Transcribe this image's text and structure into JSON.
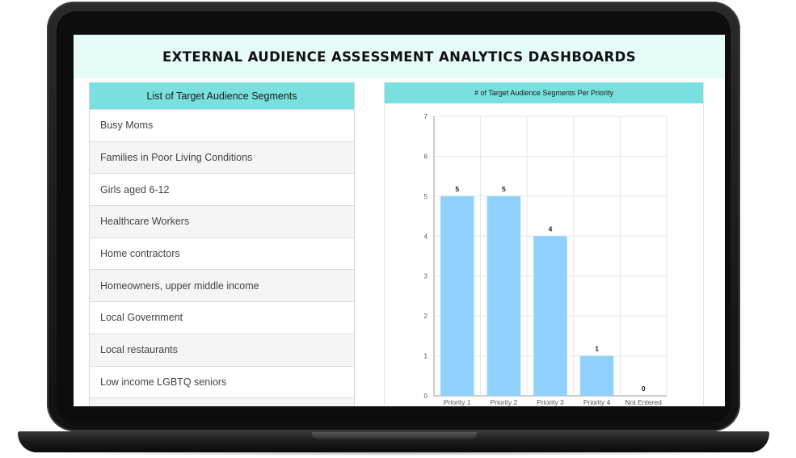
{
  "header": {
    "title": "EXTERNAL AUDIENCE ASSESSMENT ANALYTICS DASHBOARDS"
  },
  "segments": {
    "title": "List of Target Audience Segments",
    "items": [
      "Busy Moms",
      "Families in Poor Living Conditions",
      "Girls aged 6-12",
      "Healthcare Workers",
      "Home contractors",
      "Homeowners, upper middle income",
      "Local Government",
      "Local restaurants",
      "Low income LGBTQ seniors",
      ""
    ]
  },
  "chart_data": {
    "type": "bar",
    "title": "# of Target Audience Segments Per Priority",
    "categories": [
      "Priority 1",
      "Priority 2",
      "Priority 3",
      "Priority 4",
      "Not Entered"
    ],
    "values": [
      5,
      5,
      4,
      1,
      0
    ],
    "data_labels": [
      "5",
      "5",
      "4",
      "1",
      "0"
    ],
    "xlabel": "",
    "ylabel": "",
    "ylim": [
      0,
      7
    ],
    "yticks": [
      "0",
      "1",
      "2",
      "3",
      "4",
      "5",
      "6",
      "7"
    ],
    "grid": true,
    "bar_color": "#8fd1fc"
  }
}
